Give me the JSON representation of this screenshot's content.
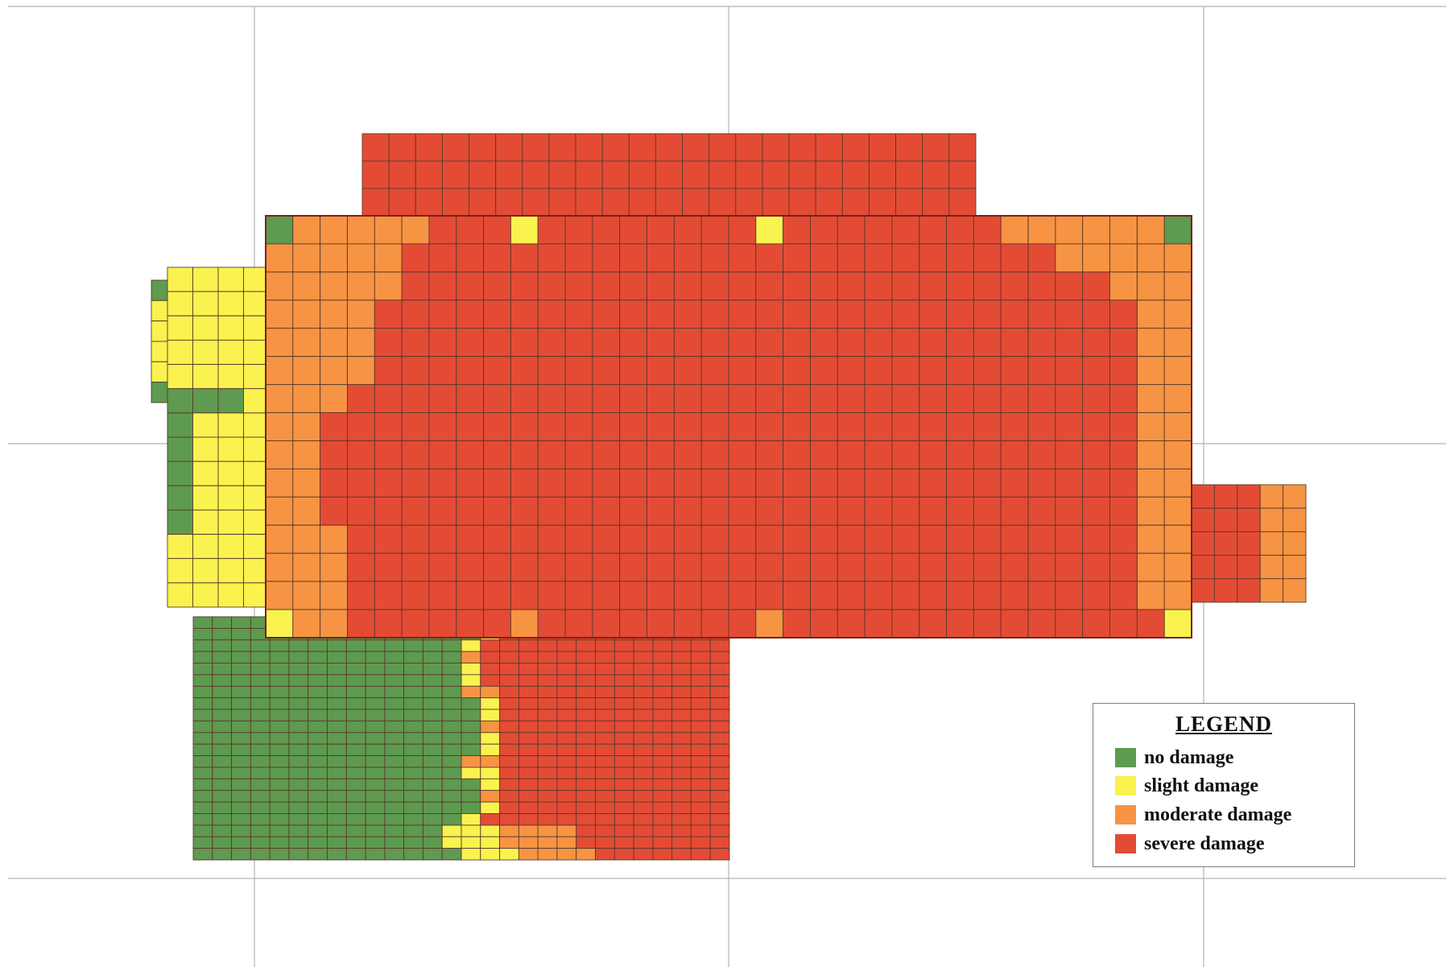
{
  "legend": {
    "title": "LEGEND",
    "items": [
      {
        "key": "no",
        "label": "no damage",
        "color": "#5e9a50"
      },
      {
        "key": "slight",
        "label": "slight damage",
        "color": "#f9f24f"
      },
      {
        "key": "moderate",
        "label": "moderate damage",
        "color": "#f79443"
      },
      {
        "key": "severe",
        "label": "severe damage",
        "color": "#e44b35"
      }
    ]
  }
}
